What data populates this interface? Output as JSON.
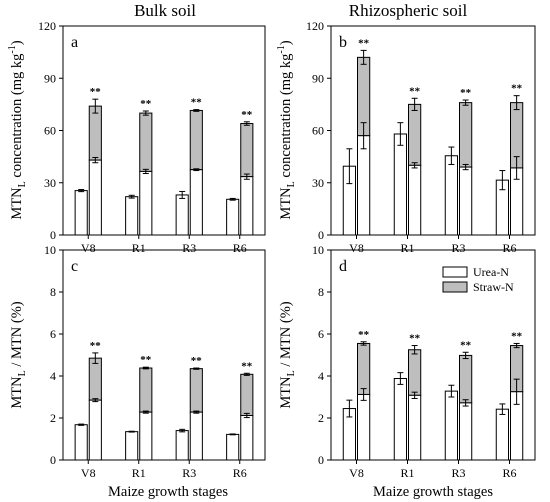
{
  "figure": {
    "column_titles": [
      "Bulk soil",
      "Rhizospheric soil"
    ],
    "ylabels": {
      "top": {
        "main": "MTN",
        "sub": "L",
        "rest": " concentration (mg kg",
        "sup": "-1",
        "tail": ")"
      },
      "bottom": {
        "main": "MTN",
        "sub": "L",
        "rest": " / MTN (%)"
      }
    },
    "xlabel": "Maize growth stages",
    "colors": {
      "urea": "#ffffff",
      "straw": "#bebebe",
      "stroke": "#000000"
    }
  },
  "chart_data": [
    {
      "panel": "a",
      "type": "bar",
      "stacked": true,
      "ylim": [
        0,
        120
      ],
      "yticks": [
        0,
        30,
        60,
        90,
        120
      ],
      "categories": [
        "V8",
        "R1",
        "R3",
        "R6"
      ],
      "series": [
        {
          "name": "Urea-N",
          "values": [
            25.5,
            22,
            23,
            20.5
          ],
          "err": [
            0.6,
            0.8,
            2,
            0.5
          ]
        },
        {
          "name": "Straw-N",
          "values": [
            0,
            0,
            0,
            0
          ],
          "err": [
            0,
            0,
            0,
            0
          ]
        }
      ],
      "paired_bars": {
        "urea": [
          43,
          36.5,
          37.5,
          33.5
        ],
        "urea_err": [
          1.5,
          1.2,
          0.5,
          1.5
        ],
        "total": [
          74,
          70,
          71.5,
          64
        ],
        "total_err": [
          4,
          1.2,
          0.5,
          1
        ]
      },
      "significance": [
        "**",
        "**",
        "**",
        "**"
      ]
    },
    {
      "panel": "b",
      "type": "bar",
      "stacked": true,
      "ylim": [
        0,
        120
      ],
      "yticks": [
        0,
        30,
        60,
        90,
        120
      ],
      "categories": [
        "V8",
        "R1",
        "R3",
        "R6"
      ],
      "series": [
        {
          "name": "Urea-N",
          "values": [
            39.5,
            58,
            45.5,
            31.5
          ],
          "err": [
            10,
            6.5,
            5,
            5.5
          ]
        },
        {
          "name": "Straw-N",
          "values": [
            0,
            0,
            0,
            0
          ],
          "err": [
            0,
            0,
            0,
            0
          ]
        }
      ],
      "paired_bars": {
        "urea": [
          57,
          40,
          39,
          38.5
        ],
        "urea_err": [
          7.5,
          1.5,
          1.5,
          6.5
        ],
        "total": [
          102,
          75,
          76,
          76
        ],
        "total_err": [
          4,
          3.5,
          1.5,
          4
        ]
      },
      "significance": [
        "**",
        "**",
        "**",
        "**"
      ]
    },
    {
      "panel": "c",
      "type": "bar",
      "stacked": true,
      "ylim": [
        0,
        10
      ],
      "yticks": [
        0,
        2,
        4,
        6,
        8,
        10
      ],
      "categories": [
        "V8",
        "R1",
        "R3",
        "R6"
      ],
      "series": [
        {
          "name": "Urea-N",
          "values": [
            1.68,
            1.35,
            1.4,
            1.22
          ],
          "err": [
            0.03,
            0.02,
            0.06,
            0.02
          ]
        },
        {
          "name": "Straw-N",
          "values": [
            0,
            0,
            0,
            0
          ],
          "err": [
            0,
            0,
            0,
            0
          ]
        }
      ],
      "paired_bars": {
        "urea": [
          2.85,
          2.28,
          2.28,
          2.12
        ],
        "urea_err": [
          0.07,
          0.05,
          0.05,
          0.1
        ],
        "total": [
          4.85,
          4.38,
          4.35,
          4.08
        ],
        "total_err": [
          0.25,
          0.04,
          0.03,
          0.05
        ]
      },
      "significance": [
        "**",
        "**",
        "**",
        "**"
      ]
    },
    {
      "panel": "d",
      "type": "bar",
      "stacked": true,
      "ylim": [
        0,
        10
      ],
      "yticks": [
        0,
        2,
        4,
        6,
        8,
        10
      ],
      "categories": [
        "V8",
        "R1",
        "R3",
        "R6"
      ],
      "series": [
        {
          "name": "Urea-N",
          "values": [
            2.45,
            3.88,
            3.28,
            2.42
          ],
          "err": [
            0.4,
            0.28,
            0.28,
            0.25
          ]
        },
        {
          "name": "Straw-N",
          "values": [
            0,
            0,
            0,
            0
          ],
          "err": [
            0,
            0,
            0,
            0
          ]
        }
      ],
      "paired_bars": {
        "urea": [
          3.12,
          3.08,
          2.72,
          3.25
        ],
        "urea_err": [
          0.28,
          0.15,
          0.15,
          0.6
        ],
        "total": [
          5.55,
          5.25,
          4.98,
          5.45
        ],
        "total_err": [
          0.08,
          0.2,
          0.15,
          0.1
        ]
      },
      "significance": [
        "**",
        "**",
        "**",
        "**"
      ],
      "legend": [
        "Urea-N",
        "Straw-N"
      ],
      "legend_position": "top-right"
    }
  ]
}
